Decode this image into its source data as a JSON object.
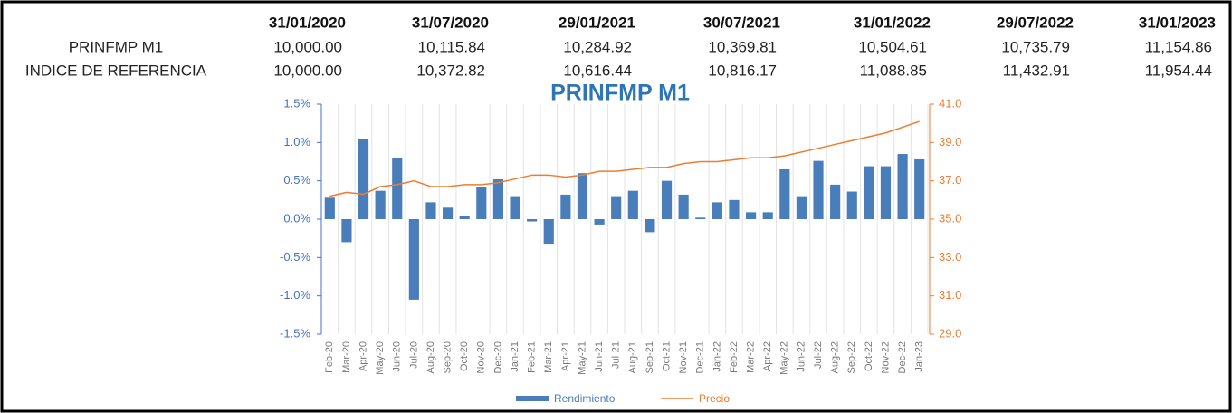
{
  "table": {
    "columns": [
      "31/01/2020",
      "31/07/2020",
      "29/01/2021",
      "30/07/2021",
      "31/01/2022",
      "29/07/2022",
      "31/01/2023"
    ],
    "rows": [
      {
        "label": "PRINFMP M1",
        "values": [
          "10,000.00",
          "10,115.84",
          "10,284.92",
          "10,369.81",
          "10,504.61",
          "10,735.79",
          "11,154.86"
        ]
      },
      {
        "label": "INDICE DE REFERENCIA",
        "values": [
          "10,000.00",
          "10,372.82",
          "10,616.44",
          "10,816.17",
          "11,088.85",
          "11,432.91",
          "11,954.44"
        ]
      }
    ]
  },
  "chart_data": {
    "type": "bar",
    "title": "PRINFMP M1",
    "categories": [
      "Feb-20",
      "Mar-20",
      "Apr-20",
      "May-20",
      "Jun-20",
      "Jul-20",
      "Aug-20",
      "Sep-20",
      "Oct-20",
      "Nov-20",
      "Dec-20",
      "Jan-21",
      "Feb-21",
      "Mar-21",
      "Apr-21",
      "May-21",
      "Jun-21",
      "Jul-21",
      "Aug-21",
      "Sep-21",
      "Oct-21",
      "Nov-21",
      "Dec-21",
      "Jan-22",
      "Feb-22",
      "Mar-22",
      "Apr-22",
      "May-22",
      "Jun-22",
      "Jul-22",
      "Aug-22",
      "Sep-22",
      "Oct-22",
      "Nov-22",
      "Dec-22",
      "Jan-23"
    ],
    "series": [
      {
        "name": "Rendimiento",
        "type": "bar",
        "color": "#4a7ebb",
        "axis": "y",
        "values": [
          0.28,
          -0.3,
          1.05,
          0.37,
          0.8,
          -1.05,
          0.22,
          0.15,
          0.04,
          0.42,
          0.52,
          0.3,
          -0.03,
          -0.32,
          0.32,
          0.6,
          -0.07,
          0.3,
          0.37,
          -0.17,
          0.5,
          0.32,
          0.02,
          0.22,
          0.25,
          0.09,
          0.09,
          0.65,
          0.3,
          0.76,
          0.45,
          0.36,
          0.69,
          0.69,
          0.85,
          0.78
        ]
      },
      {
        "name": "Precio",
        "type": "line",
        "color": "#ed7d31",
        "axis": "y2",
        "values": [
          36.2,
          36.4,
          36.3,
          36.7,
          36.8,
          37.0,
          36.7,
          36.7,
          36.8,
          36.8,
          36.9,
          37.1,
          37.3,
          37.3,
          37.2,
          37.3,
          37.5,
          37.5,
          37.6,
          37.7,
          37.7,
          37.9,
          38.0,
          38.0,
          38.1,
          38.2,
          38.2,
          38.3,
          38.5,
          38.7,
          38.9,
          39.1,
          39.3,
          39.5,
          39.8,
          40.1
        ]
      }
    ],
    "ylim": [
      -1.5,
      1.5
    ],
    "yticks": [
      {
        "value": -1.5,
        "label": "-1.5%"
      },
      {
        "value": -1.0,
        "label": "-1.0%"
      },
      {
        "value": -0.5,
        "label": "-0.5%"
      },
      {
        "value": 0,
        "label": "0.0%"
      },
      {
        "value": 0.5,
        "label": "0.5%"
      },
      {
        "value": 1.0,
        "label": "1.0%"
      },
      {
        "value": 1.5,
        "label": "1.5%"
      }
    ],
    "y2lim": [
      29,
      41
    ],
    "y2ticks": [
      {
        "value": 29,
        "label": "29.0"
      },
      {
        "value": 31,
        "label": "31.0"
      },
      {
        "value": 33,
        "label": "33.0"
      },
      {
        "value": 35,
        "label": "35.0"
      },
      {
        "value": 37,
        "label": "37.0"
      },
      {
        "value": 39,
        "label": "39.0"
      },
      {
        "value": 41,
        "label": "41.0"
      }
    ],
    "grid": "x",
    "legend": "bottom"
  }
}
